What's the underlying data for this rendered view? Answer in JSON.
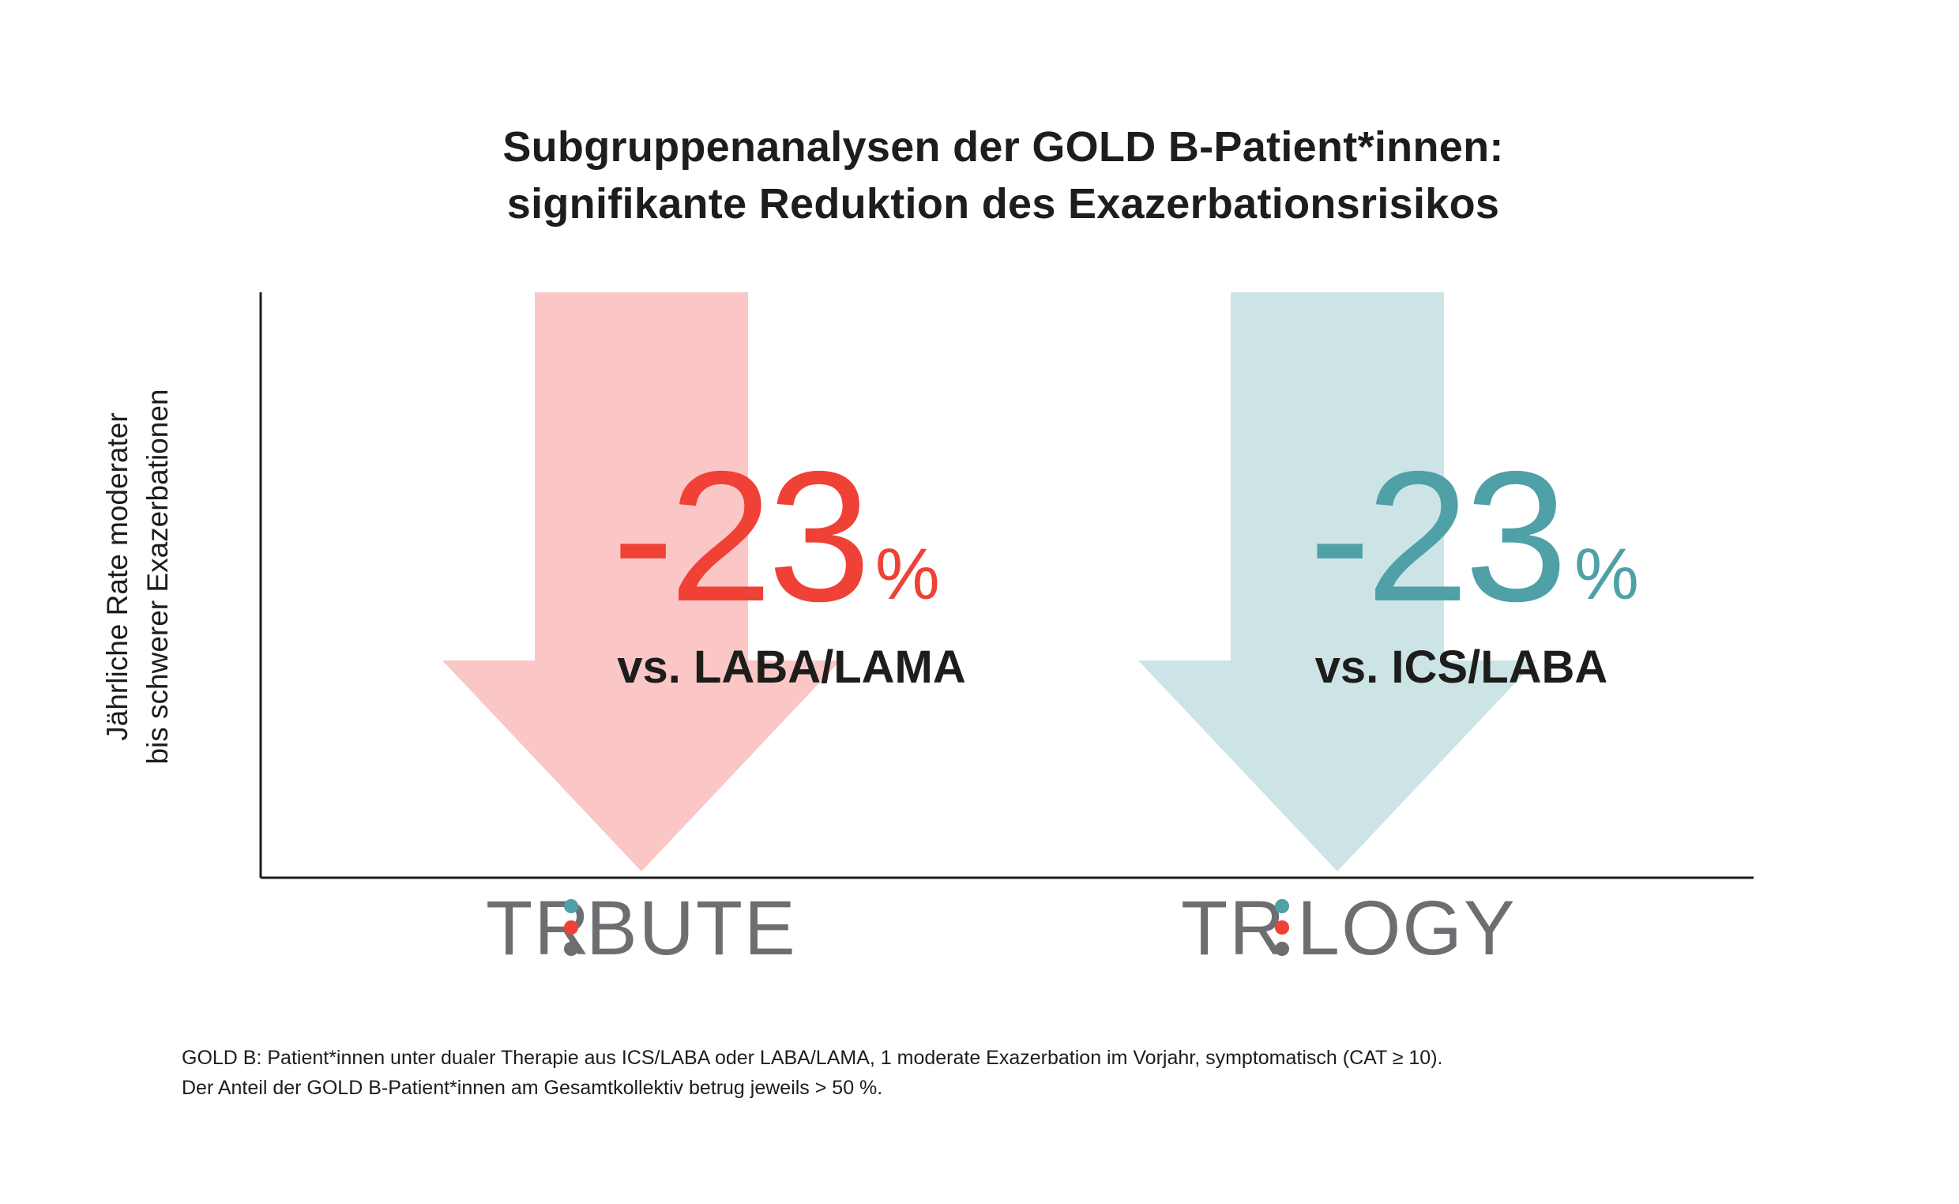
{
  "title_lines": [
    "Subgruppenanalysen der GOLD B-Patient*innen:",
    "signifikante Reduktion des Exazerbationsrisikos"
  ],
  "colors": {
    "tribute_arrow": "#fbc6c6",
    "tribute_text": "#ef4136",
    "trilogy_arrow": "#cce4e5",
    "trilogy_text": "#4fa0a7",
    "logo_gray": "#6d6e71",
    "dot_teal": "#4fa0a7",
    "dot_red": "#ef4136",
    "dot_gray": "#6d6e71",
    "axis": "#1d1d1b"
  },
  "chart_data": {
    "type": "bar",
    "categories": [
      "TRIBUTE",
      "TRILOGY"
    ],
    "series": [
      {
        "values": [
          -23,
          -23
        ]
      }
    ],
    "ylabel": [
      "Jährliche Rate moderater",
      "bis schwerer  Exazerbationen"
    ],
    "xlabel": "",
    "annotations": [
      {
        "category": "TRIBUTE",
        "value_label": "-23",
        "unit": "%",
        "comparison": "vs. LABA/LAMA",
        "color_key": "tribute_text",
        "arrow_color_key": "tribute_arrow"
      },
      {
        "category": "TRILOGY",
        "value_label": "-23",
        "unit": "%",
        "comparison": "vs. ICS/LABA",
        "color_key": "trilogy_text",
        "arrow_color_key": "trilogy_arrow"
      }
    ],
    "logos": [
      {
        "left": "TR",
        "right": "BUTE"
      },
      {
        "left": "TR",
        "right": "LOGY"
      }
    ],
    "grid": false,
    "legend": "none"
  },
  "footnote": [
    "GOLD B: Patient*innen unter dualer Therapie aus ICS/LABA oder LABA/LAMA, 1 moderate Exazerbation im Vorjahr, symptomatisch (CAT ≥ 10).",
    "Der Anteil der GOLD B-Patient*innen am Gesamtkollektiv betrug jeweils > 50 %."
  ]
}
